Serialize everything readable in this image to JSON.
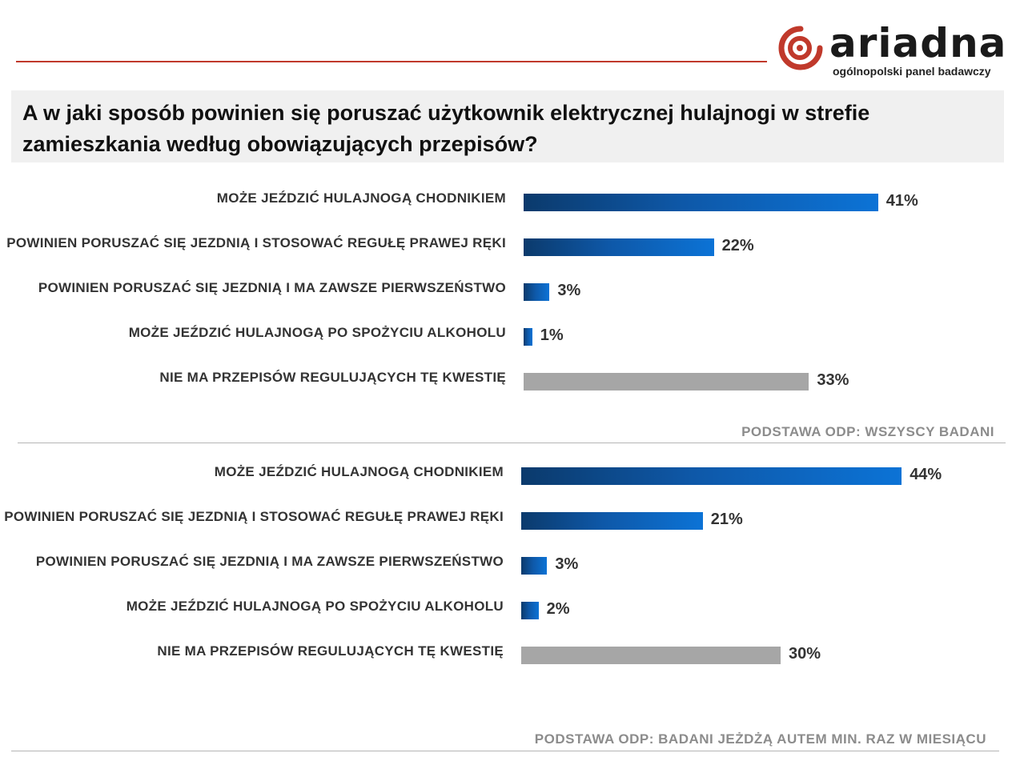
{
  "logo": {
    "word": "ariadna",
    "tagline": "ogólnopolski panel badawczy"
  },
  "question": "A w jaki sposób powinien się poruszać użytkownik elektrycznej hulajnogi w strefie zamieszkania według obowiązujących przepisów?",
  "colors": {
    "accent_red": "#c0392b",
    "bar_blue": "#0e58a8",
    "bar_gray": "#a6a6a6"
  },
  "chart_data": [
    {
      "type": "bar",
      "orientation": "horizontal",
      "categories": [
        "MOŻE JEŹDZIĆ HULAJNOGĄ CHODNIKIEM",
        "POWINIEN PORUSZAĆ SIĘ JEZDNIĄ I STOSOWAĆ REGUŁĘ PRAWEJ RĘKI",
        "POWINIEN PORUSZAĆ SIĘ JEZDNIĄ I MA ZAWSZE PIERWSZEŃSTWO",
        "MOŻE JEŹDZIĆ HULAJNOGĄ PO SPOŻYCIU ALKOHOLU",
        "NIE MA PRZEPISÓW REGULUJĄCYCH TĘ KWESTIĘ"
      ],
      "values": [
        41,
        22,
        3,
        1,
        33
      ],
      "value_labels": [
        "41%",
        "22%",
        "3%",
        "1%",
        "33%"
      ],
      "bar_colors": [
        "blue",
        "blue",
        "blue",
        "blue",
        "gray"
      ],
      "base": "PODSTAWA  ODP: WSZYSCY BADANI",
      "xlim": [
        0,
        100
      ]
    },
    {
      "type": "bar",
      "orientation": "horizontal",
      "categories": [
        "MOŻE JEŹDZIĆ HULAJNOGĄ CHODNIKIEM",
        "POWINIEN PORUSZAĆ SIĘ JEZDNIĄ I STOSOWAĆ REGUŁĘ PRAWEJ RĘKI",
        "POWINIEN PORUSZAĆ SIĘ JEZDNIĄ I MA ZAWSZE PIERWSZEŃSTWO",
        "MOŻE JEŹDZIĆ HULAJNOGĄ PO SPOŻYCIU ALKOHOLU",
        "NIE MA PRZEPISÓW REGULUJĄCYCH TĘ KWESTIĘ"
      ],
      "values": [
        44,
        21,
        3,
        2,
        30
      ],
      "value_labels": [
        "44%",
        "21%",
        "3%",
        "2%",
        "30%"
      ],
      "bar_colors": [
        "blue",
        "blue",
        "blue",
        "blue",
        "gray"
      ],
      "base": "PODSTAWA  ODP: BADANI JEŻDŻĄ AUTEM  MIN. RAZ W MIESIĄCU",
      "xlim": [
        0,
        100
      ]
    }
  ]
}
